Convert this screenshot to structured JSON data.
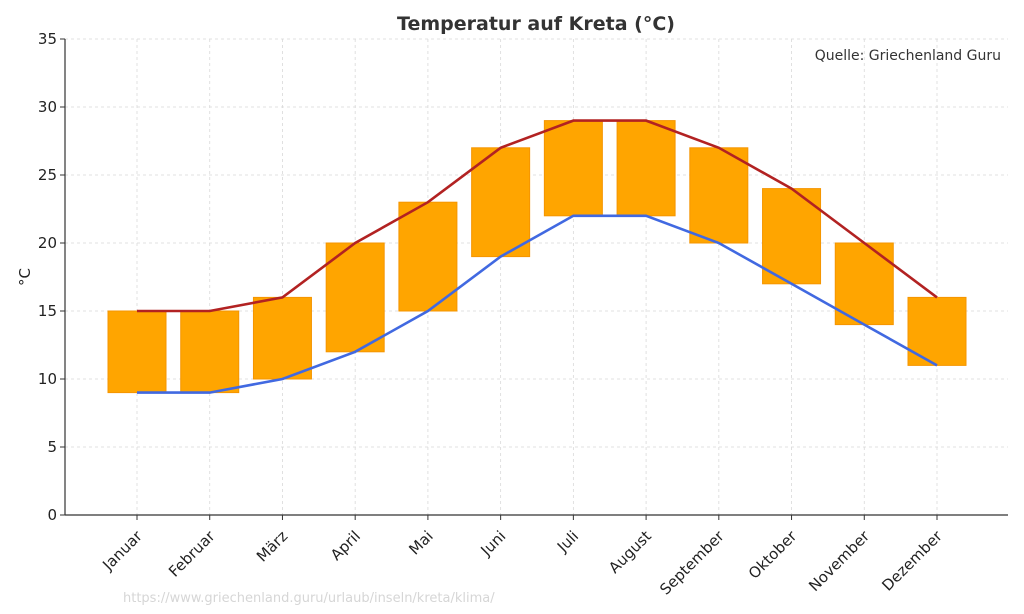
{
  "chart_data": {
    "type": "bar",
    "title": "Temperatur auf Kreta (°C)",
    "ylabel": "°C",
    "xlabel": "",
    "ylim": [
      0,
      35
    ],
    "yticks": [
      0,
      5,
      10,
      15,
      20,
      25,
      30,
      35
    ],
    "grid": true,
    "categories": [
      "Januar",
      "Februar",
      "März",
      "April",
      "Mai",
      "Juni",
      "Juli",
      "August",
      "September",
      "Oktober",
      "November",
      "Dezember"
    ],
    "series": [
      {
        "values_min": [
          9,
          9,
          10,
          12,
          15,
          19,
          22,
          22,
          20,
          17,
          14,
          11
        ],
        "values_max": [
          15,
          15,
          16,
          20,
          23,
          27,
          29,
          29,
          27,
          24,
          20,
          16
        ],
        "kind": "floating-bar",
        "color": "#FFA500"
      },
      {
        "values": [
          15,
          15,
          16,
          20,
          23,
          27,
          29,
          29,
          27,
          24,
          20,
          16
        ],
        "kind": "line",
        "color": "#B22222"
      },
      {
        "values": [
          9,
          9,
          10,
          12,
          15,
          19,
          22,
          22,
          20,
          17,
          14,
          11
        ],
        "kind": "line",
        "color": "#4169E1"
      }
    ],
    "annotation": "Quelle: Griechenland Guru",
    "watermark": "https://www.griechenland.guru/urlaub/inseln/kreta/klima/"
  }
}
